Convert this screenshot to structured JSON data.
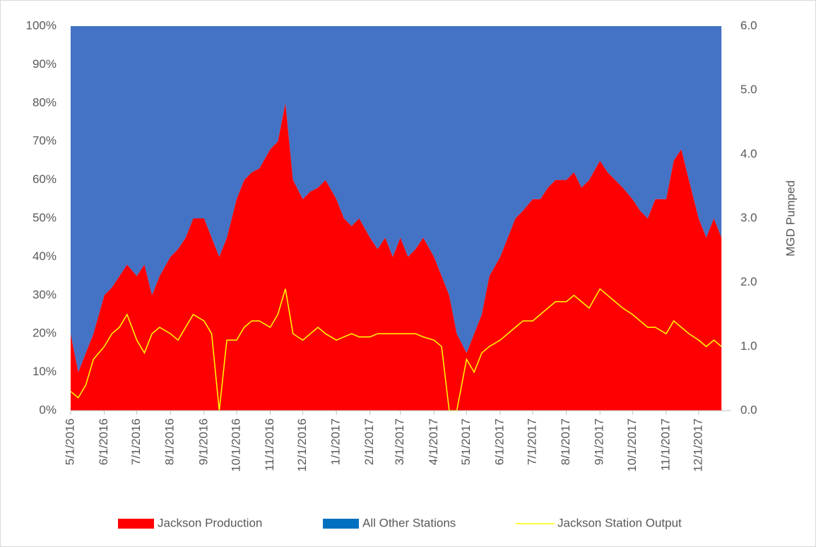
{
  "chart_data": {
    "type": "area",
    "y2_label": "MGD Pumped",
    "x": [
      "5/1/2016",
      "5/8/2016",
      "5/15/2016",
      "5/22/2016",
      "6/1/2016",
      "6/8/2016",
      "6/15/2016",
      "6/22/2016",
      "7/1/2016",
      "7/8/2016",
      "7/15/2016",
      "7/22/2016",
      "8/1/2016",
      "8/8/2016",
      "8/15/2016",
      "8/22/2016",
      "9/1/2016",
      "9/8/2016",
      "9/15/2016",
      "9/22/2016",
      "10/1/2016",
      "10/8/2016",
      "10/15/2016",
      "10/22/2016",
      "11/1/2016",
      "11/8/2016",
      "11/15/2016",
      "11/22/2016",
      "12/1/2016",
      "12/8/2016",
      "12/15/2016",
      "12/22/2016",
      "1/1/2017",
      "1/8/2017",
      "1/15/2017",
      "1/22/2017",
      "2/1/2017",
      "2/8/2017",
      "2/15/2017",
      "2/22/2017",
      "3/1/2017",
      "3/8/2017",
      "3/15/2017",
      "3/22/2017",
      "4/1/2017",
      "4/8/2017",
      "4/15/2017",
      "4/22/2017",
      "5/1/2017",
      "5/8/2017",
      "5/15/2017",
      "5/22/2017",
      "6/1/2017",
      "6/8/2017",
      "6/15/2017",
      "6/22/2017",
      "7/1/2017",
      "7/8/2017",
      "7/15/2017",
      "7/22/2017",
      "8/1/2017",
      "8/8/2017",
      "8/15/2017",
      "8/22/2017",
      "9/1/2017",
      "9/8/2017",
      "9/15/2017",
      "9/22/2017",
      "10/1/2017",
      "10/8/2017",
      "10/15/2017",
      "10/22/2017",
      "11/1/2017",
      "11/8/2017",
      "11/15/2017",
      "11/22/2017",
      "12/1/2017",
      "12/8/2017",
      "12/15/2017",
      "12/22/2017"
    ],
    "series": [
      {
        "name": "Jackson Production",
        "kind": "area",
        "color": "#ff0000",
        "values": [
          20,
          10,
          15,
          20,
          30,
          32,
          35,
          38,
          35,
          38,
          30,
          35,
          40,
          42,
          45,
          50,
          50,
          45,
          40,
          45,
          55,
          60,
          62,
          63,
          68,
          70,
          80,
          60,
          55,
          57,
          58,
          60,
          55,
          50,
          48,
          50,
          45,
          42,
          45,
          40,
          45,
          40,
          42,
          45,
          40,
          35,
          30,
          20,
          15,
          20,
          25,
          35,
          40,
          45,
          50,
          52,
          55,
          55,
          58,
          60,
          60,
          62,
          58,
          60,
          65,
          62,
          60,
          58,
          55,
          52,
          50,
          55,
          55,
          65,
          68,
          60,
          50,
          45,
          50,
          45
        ]
      },
      {
        "name": "All Other Stations",
        "kind": "area",
        "color": "#4472c4",
        "legend_color": "#0070c0",
        "values": [
          80,
          90,
          85,
          80,
          70,
          68,
          65,
          62,
          65,
          62,
          70,
          65,
          60,
          58,
          55,
          50,
          50,
          55,
          60,
          55,
          45,
          40,
          38,
          37,
          32,
          30,
          20,
          40,
          45,
          43,
          42,
          40,
          45,
          50,
          52,
          50,
          55,
          58,
          55,
          60,
          55,
          60,
          58,
          55,
          60,
          65,
          70,
          80,
          85,
          80,
          75,
          65,
          60,
          55,
          50,
          48,
          45,
          45,
          42,
          40,
          40,
          38,
          42,
          40,
          35,
          38,
          40,
          42,
          45,
          48,
          50,
          45,
          45,
          35,
          32,
          40,
          50,
          55,
          50,
          55
        ]
      },
      {
        "name": "Jackson Station Output",
        "kind": "line",
        "axis": "y2",
        "color": "#ffff00",
        "values": [
          0.3,
          0.2,
          0.4,
          0.8,
          1.0,
          1.2,
          1.3,
          1.5,
          1.1,
          0.9,
          1.2,
          1.3,
          1.2,
          1.1,
          1.3,
          1.5,
          1.4,
          1.2,
          0.0,
          1.1,
          1.1,
          1.3,
          1.4,
          1.4,
          1.3,
          1.5,
          1.9,
          1.2,
          1.1,
          1.2,
          1.3,
          1.2,
          1.1,
          1.15,
          1.2,
          1.15,
          1.15,
          1.2,
          1.2,
          1.2,
          1.2,
          1.2,
          1.2,
          1.15,
          1.1,
          1.0,
          0.0,
          0.0,
          0.8,
          0.6,
          0.9,
          1.0,
          1.1,
          1.2,
          1.3,
          1.4,
          1.4,
          1.5,
          1.6,
          1.7,
          1.7,
          1.8,
          1.7,
          1.6,
          1.9,
          1.8,
          1.7,
          1.6,
          1.5,
          1.4,
          1.3,
          1.3,
          1.2,
          1.4,
          1.3,
          1.2,
          1.1,
          1.0,
          1.1,
          1.0
        ]
      }
    ],
    "xticks": [
      "5/1/2016",
      "6/1/2016",
      "7/1/2016",
      "8/1/2016",
      "9/1/2016",
      "10/1/2016",
      "11/1/2016",
      "12/1/2016",
      "1/1/2017",
      "2/1/2017",
      "3/1/2017",
      "4/1/2017",
      "5/1/2017",
      "6/1/2017",
      "7/1/2017",
      "8/1/2017",
      "9/1/2017",
      "10/1/2017",
      "11/1/2017",
      "12/1/2017"
    ],
    "ylim": [
      0,
      100
    ],
    "yticks": [
      {
        "value": 0,
        "label": "0%"
      },
      {
        "value": 10,
        "label": "10%"
      },
      {
        "value": 20,
        "label": "20%"
      },
      {
        "value": 30,
        "label": "30%"
      },
      {
        "value": 40,
        "label": "40%"
      },
      {
        "value": 50,
        "label": "50%"
      },
      {
        "value": 60,
        "label": "60%"
      },
      {
        "value": 70,
        "label": "70%"
      },
      {
        "value": 80,
        "label": "80%"
      },
      {
        "value": 90,
        "label": "90%"
      },
      {
        "value": 100,
        "label": "100%"
      }
    ],
    "y2lim": [
      0,
      6
    ],
    "y2ticks": [
      {
        "value": 0,
        "label": "0.0"
      },
      {
        "value": 1,
        "label": "1.0"
      },
      {
        "value": 2,
        "label": "2.0"
      },
      {
        "value": 3,
        "label": "3.0"
      },
      {
        "value": 4,
        "label": "4.0"
      },
      {
        "value": 5,
        "label": "5.0"
      },
      {
        "value": 6,
        "label": "6.0"
      }
    ],
    "legend": "bottom"
  }
}
